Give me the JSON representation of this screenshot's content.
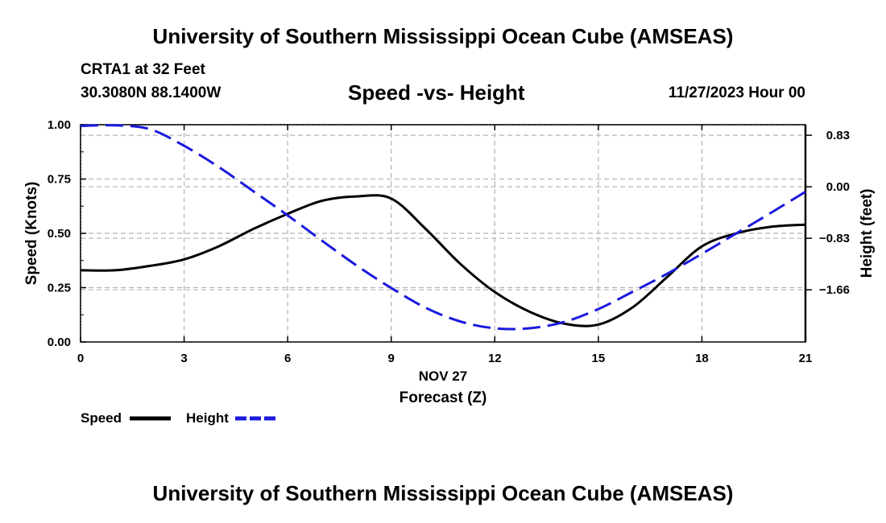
{
  "header": {
    "title": "University of Southern Mississippi Ocean Cube (AMSEAS)",
    "station": "CRTA1 at 32 Feet",
    "coords": "30.3080N  88.1400W",
    "datetime": "11/27/2023 Hour 00"
  },
  "footer": {
    "title": "University of Southern Mississippi Ocean Cube (AMSEAS)"
  },
  "colors": {
    "speed": "#000000",
    "height": "#1a1adf",
    "grid": "#b4b4b4"
  },
  "chart_data": {
    "type": "line",
    "title": "Speed -vs- Height",
    "xlabel_date": "NOV 27",
    "xlabel": "Forecast (Z)",
    "ylabel_left": "Speed (Knots)",
    "ylabel_right": "Height (feet)",
    "xlim": [
      0,
      21
    ],
    "ylim_left": [
      0,
      1
    ],
    "ylim_right": [
      -2.5,
      1.0
    ],
    "x_ticks": [
      "0",
      "3",
      "6",
      "9",
      "12",
      "15",
      "18",
      "21"
    ],
    "y_ticks_left": [
      "0.00",
      "0.25",
      "0.50",
      "0.75",
      "1.00"
    ],
    "y_ticks_right": [
      "0.83",
      "0.00",
      "−0.83",
      "−1.66"
    ],
    "x_tick_values": [
      0,
      3,
      6,
      9,
      12,
      15,
      18,
      21
    ],
    "y_tick_values_left": [
      0,
      0.25,
      0.5,
      0.75,
      1.0
    ],
    "y_tick_values_right": [
      0.83,
      0.0,
      -0.83,
      -1.66
    ],
    "series": [
      {
        "name": "Speed",
        "axis": "left",
        "style": "solid",
        "x": [
          0,
          1,
          2,
          3,
          4,
          5,
          6,
          7,
          8,
          9,
          10,
          11,
          12,
          13,
          14,
          15,
          16,
          17,
          18,
          19,
          20,
          21
        ],
        "values": [
          0.33,
          0.33,
          0.35,
          0.38,
          0.44,
          0.52,
          0.59,
          0.65,
          0.67,
          0.66,
          0.52,
          0.36,
          0.23,
          0.14,
          0.085,
          0.08,
          0.16,
          0.3,
          0.44,
          0.5,
          0.53,
          0.54
        ]
      },
      {
        "name": "Height",
        "axis": "right",
        "style": "dashed",
        "x": [
          0,
          1,
          2,
          3,
          4,
          5,
          6,
          7,
          8,
          9,
          10,
          11,
          12,
          13,
          14,
          15,
          16,
          17,
          18,
          19,
          20,
          21
        ],
        "values": [
          0.98,
          0.99,
          0.93,
          0.66,
          0.32,
          -0.07,
          -0.46,
          -0.87,
          -1.27,
          -1.63,
          -1.95,
          -2.17,
          -2.28,
          -2.28,
          -2.18,
          -1.97,
          -1.69,
          -1.4,
          -1.08,
          -0.75,
          -0.42,
          -0.08
        ]
      }
    ],
    "legend": {
      "speed": "Speed",
      "height": "Height",
      "placement": "bottom-left"
    }
  }
}
